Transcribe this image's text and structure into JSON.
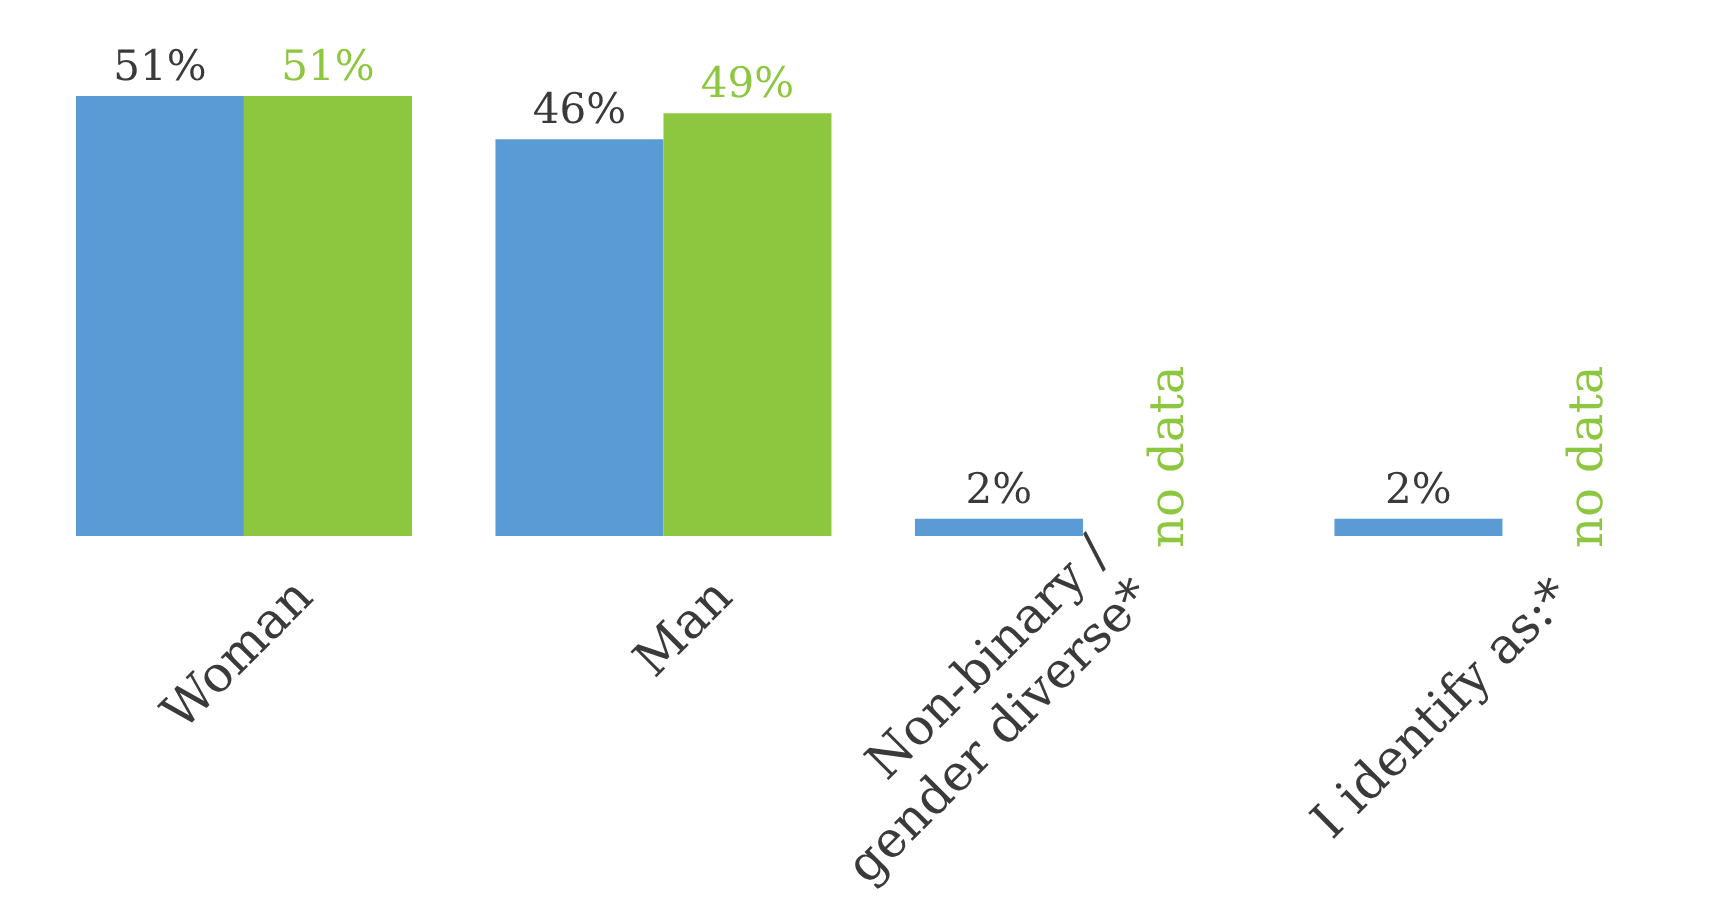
{
  "chart_data": {
    "type": "bar",
    "categories": [
      "Woman",
      "Man",
      "Non-binary / gender diverse*",
      "I identify as:*"
    ],
    "series": [
      {
        "color": "#5b9bd5",
        "values": [
          51,
          46,
          2,
          2
        ],
        "value_labels": [
          "51%",
          "46%",
          "2%",
          "2%"
        ]
      },
      {
        "color": "#8dc63f",
        "values": [
          51,
          49,
          null,
          null
        ],
        "value_labels": [
          "51%",
          "49%",
          "no data",
          "no data"
        ]
      }
    ],
    "grid": false,
    "legend": false
  }
}
